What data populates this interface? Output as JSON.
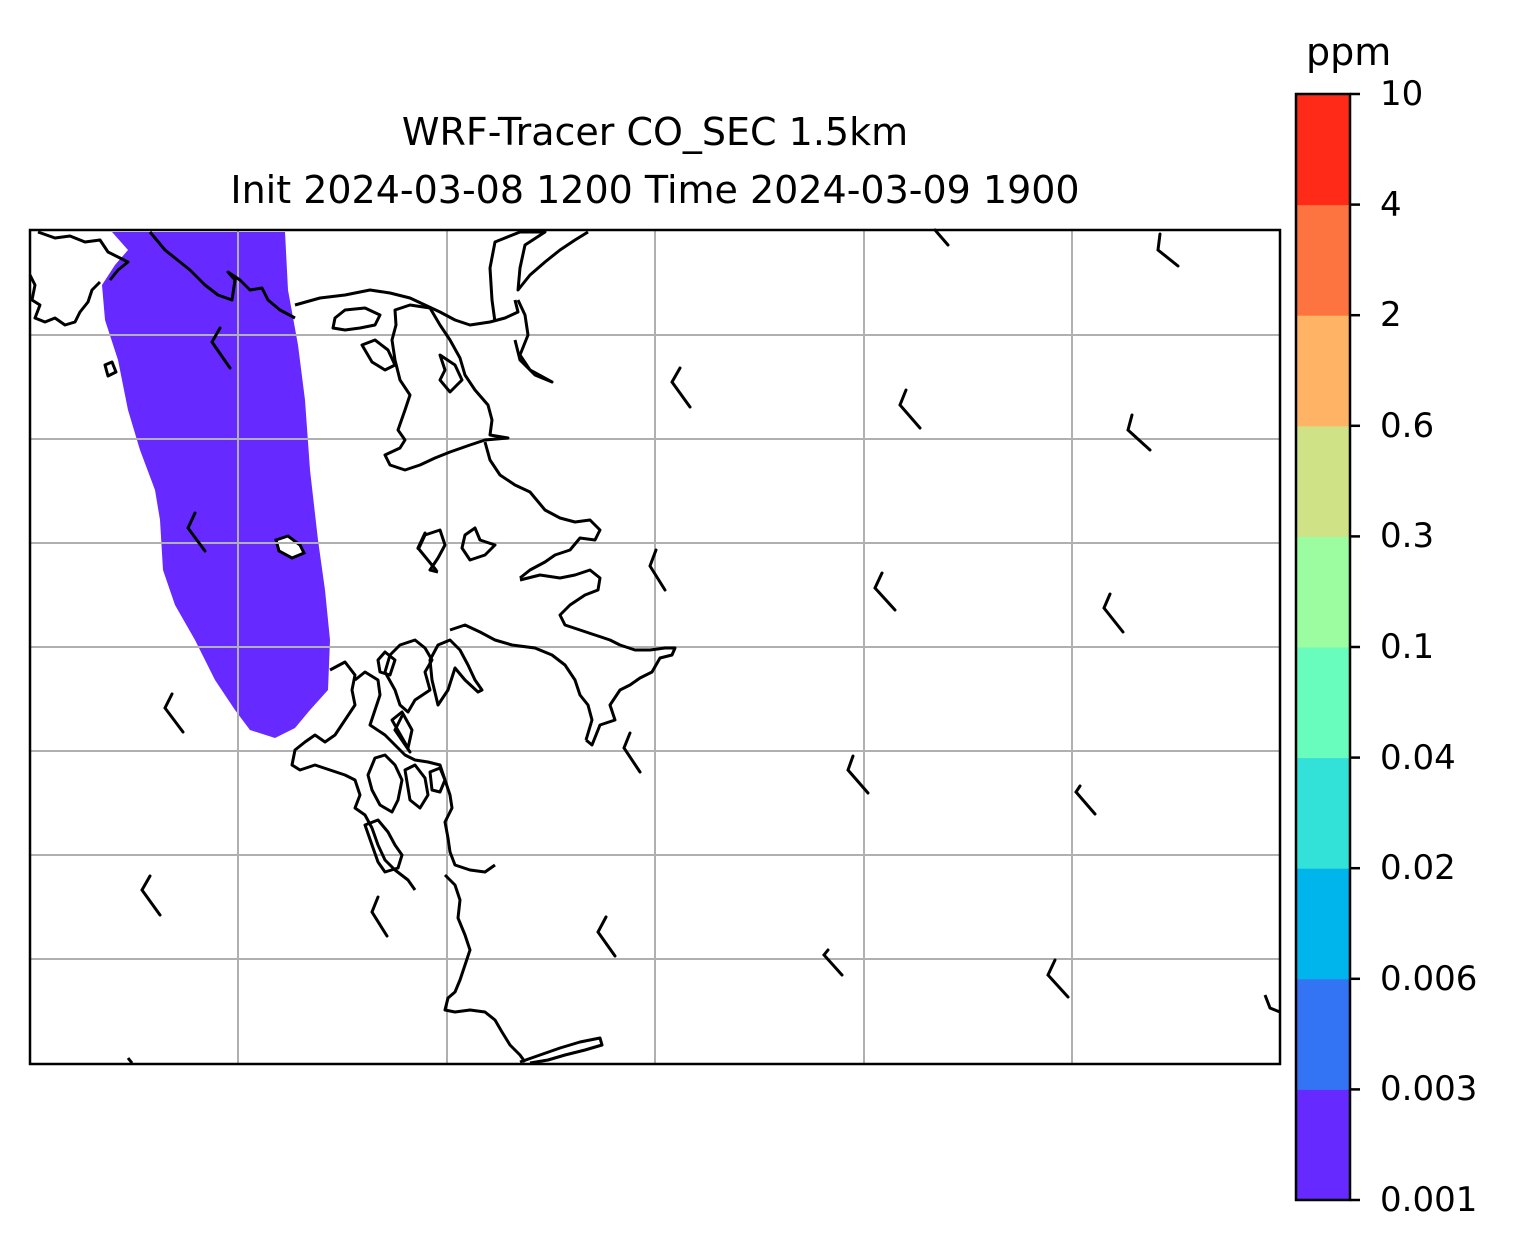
{
  "title": {
    "line1": "WRF-Tracer CO_SEC 1.5km",
    "line2": "Init 2024-03-08 1200 Time 2024-03-09 1900"
  },
  "colorbar": {
    "unit": "ppm",
    "levels": [
      "0.001",
      "0.003",
      "0.006",
      "0.02",
      "0.04",
      "0.1",
      "0.3",
      "0.6",
      "2",
      "4",
      "10"
    ],
    "colors": [
      "#6629ff",
      "#3374f4",
      "#00b4ec",
      "#32e2d8",
      "#68fdbc",
      "#9bfd9f",
      "#cfe286",
      "#feb464",
      "#fe7440",
      "#ff2a18"
    ]
  },
  "map": {
    "gridlines": true,
    "plume_level_color": "#6629ff",
    "wind_barb_color": "#000000",
    "coastline_color": "#000000"
  }
}
